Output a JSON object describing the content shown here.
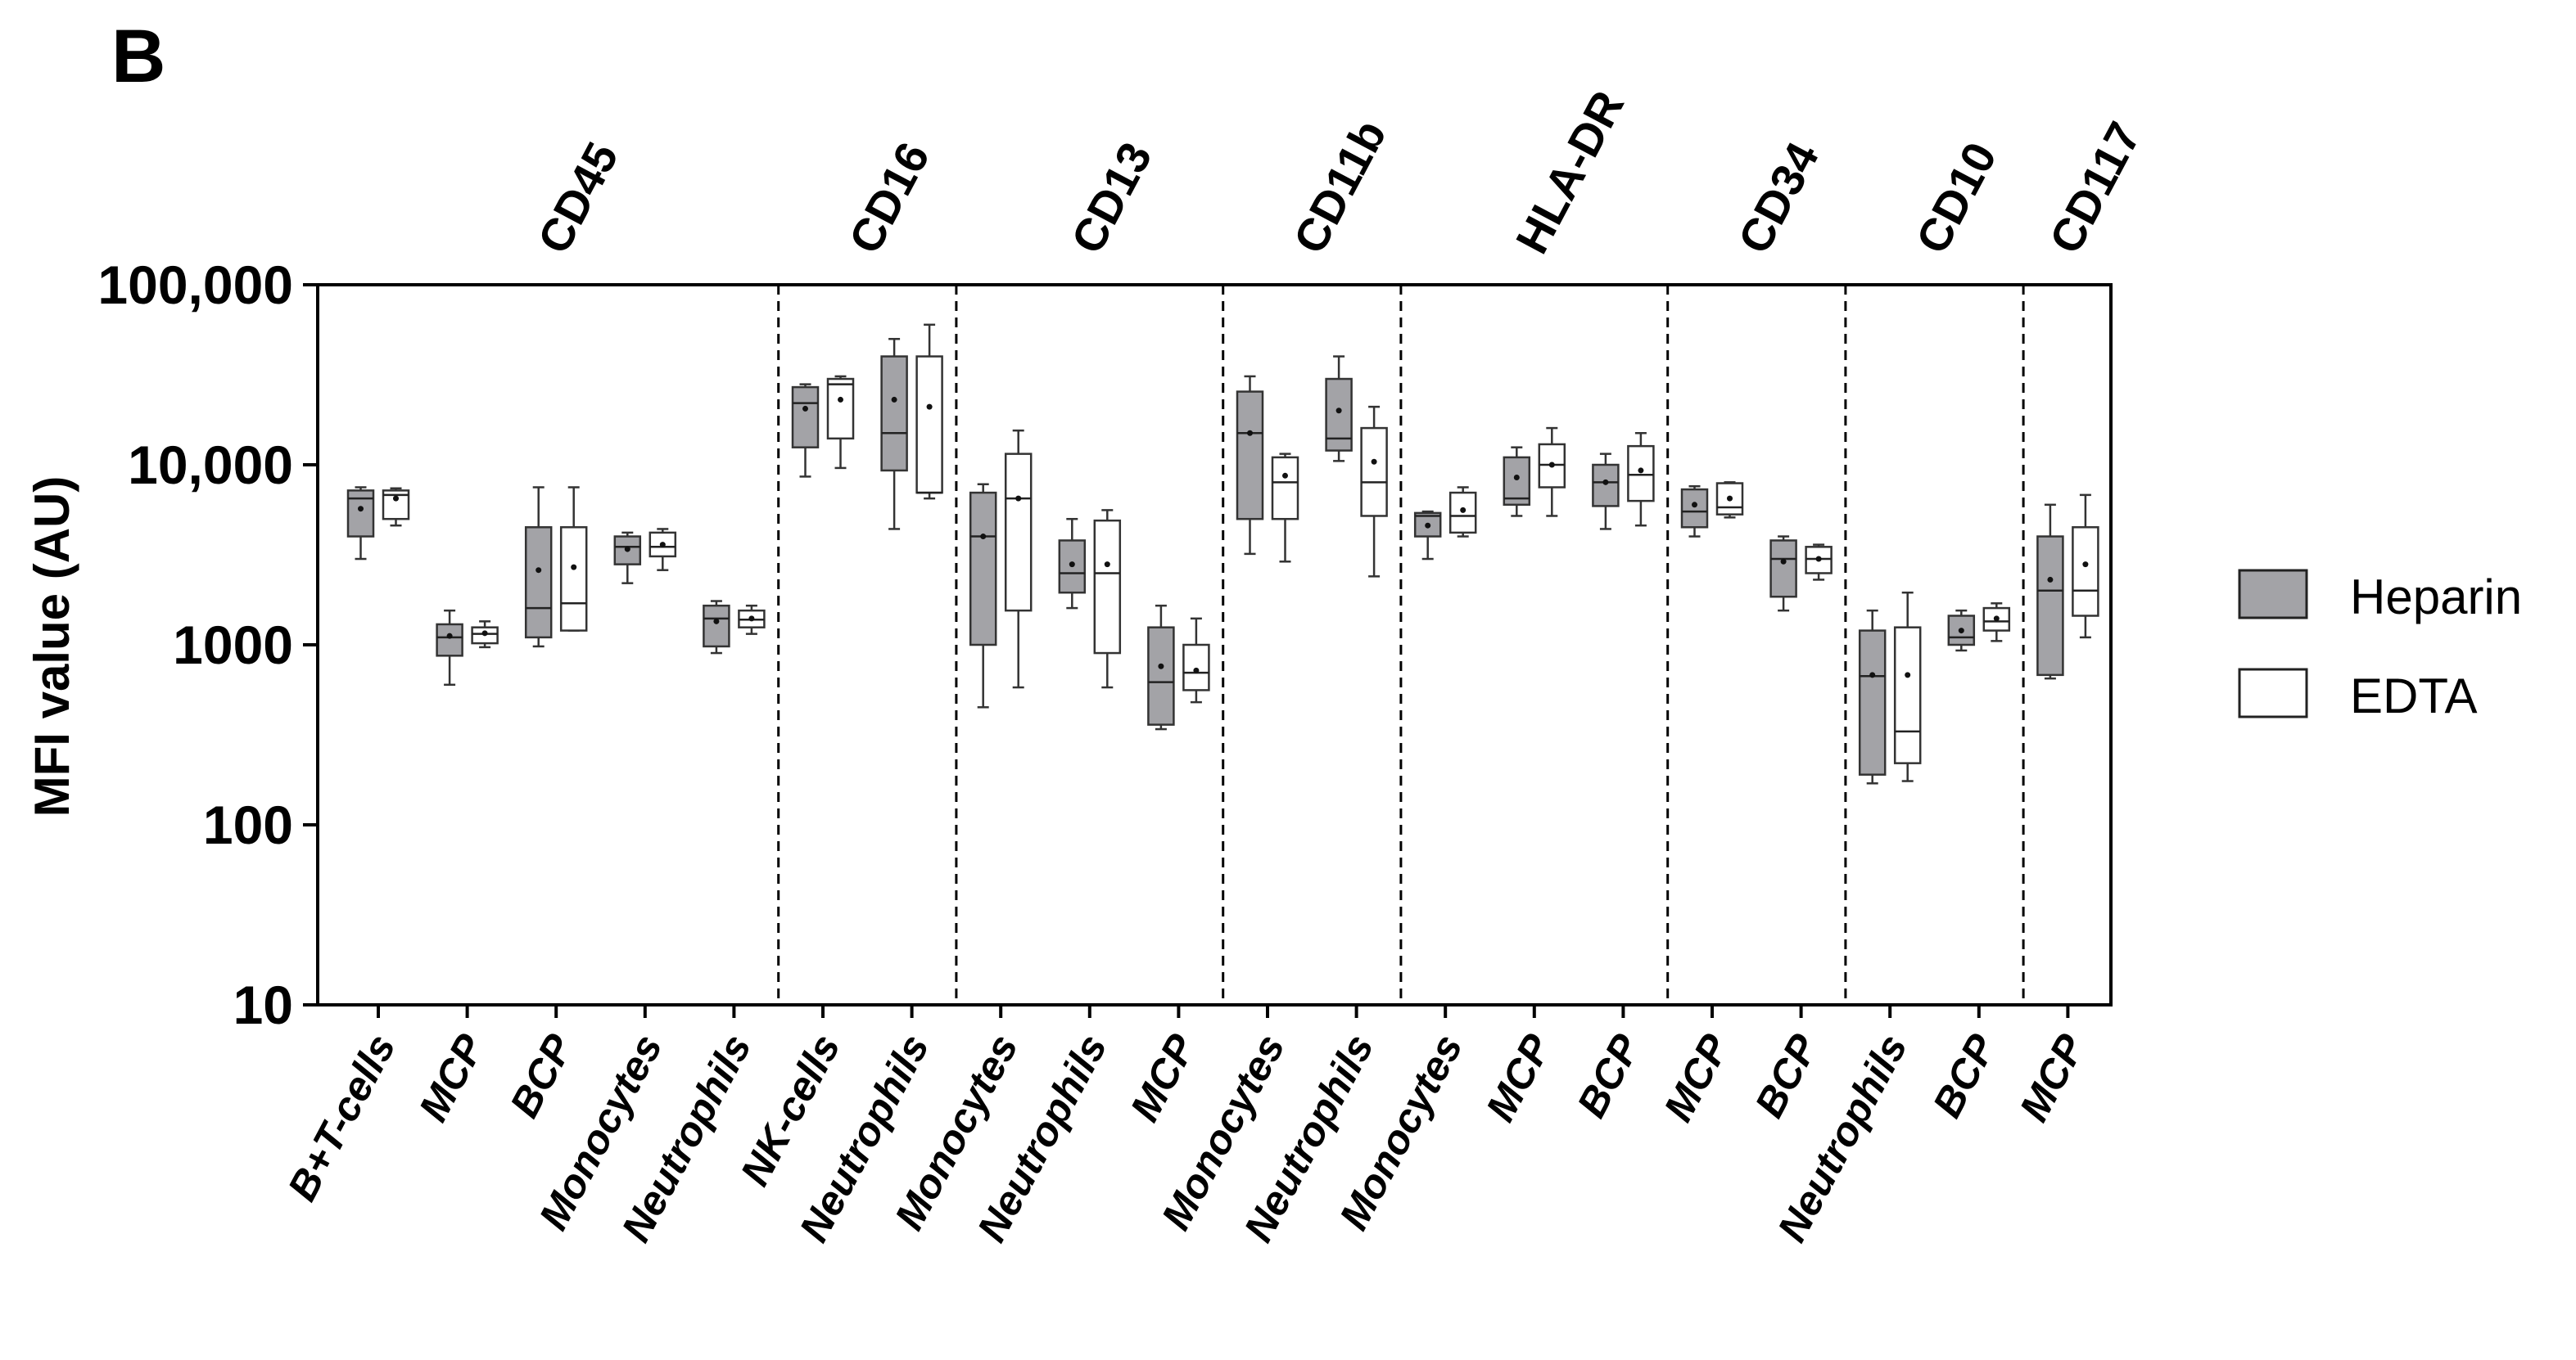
{
  "panel_label": "B",
  "chart_data": {
    "type": "boxplot",
    "title": "",
    "ylabel": "MFI value (AU)",
    "yscale": "log10",
    "ylim": [
      10,
      100000
    ],
    "y_ticks": [
      {
        "value": 10,
        "label": "10"
      },
      {
        "value": 100,
        "label": "100"
      },
      {
        "value": 1000,
        "label": "1000"
      },
      {
        "value": 10000,
        "label": "10,000"
      },
      {
        "value": 100000,
        "label": "100,000"
      }
    ],
    "legend": [
      {
        "name": "Heparin",
        "color": "#a3a3a7"
      },
      {
        "name": "EDTA",
        "color": "#ffffff"
      }
    ],
    "legend_position": "right",
    "groups": [
      {
        "marker": "CD45",
        "categories": [
          "B+T-cells",
          "MCP",
          "BCP",
          "Monocytes",
          "Neutrophils"
        ]
      },
      {
        "marker": "CD16",
        "categories": [
          "NK-cells",
          "Neutrophils"
        ]
      },
      {
        "marker": "CD13",
        "categories": [
          "Monocytes",
          "Neutrophils",
          "MCP"
        ]
      },
      {
        "marker": "CD11b",
        "categories": [
          "Monocytes",
          "Neutrophils"
        ]
      },
      {
        "marker": "HLA-DR",
        "categories": [
          "Monocytes",
          "MCP",
          "BCP"
        ]
      },
      {
        "marker": "CD34",
        "categories": [
          "MCP",
          "BCP"
        ]
      },
      {
        "marker": "CD10",
        "categories": [
          "Neutrophils",
          "BCP"
        ]
      },
      {
        "marker": "CD117",
        "categories": [
          "MCP"
        ]
      }
    ],
    "boxes": [
      {
        "heparin": {
          "min": 3000,
          "q1": 4000,
          "median": 6500,
          "q3": 7200,
          "max": 7500,
          "mean": 5700
        },
        "edta": {
          "min": 4600,
          "q1": 5000,
          "median": 6800,
          "q3": 7200,
          "max": 7400,
          "mean": 6500
        }
      },
      {
        "heparin": {
          "min": 600,
          "q1": 870,
          "median": 1100,
          "q3": 1300,
          "max": 1550,
          "mean": 1120
        },
        "edta": {
          "min": 970,
          "q1": 1020,
          "median": 1150,
          "q3": 1250,
          "max": 1350,
          "mean": 1160
        }
      },
      {
        "heparin": {
          "min": 980,
          "q1": 1100,
          "median": 1600,
          "q3": 4500,
          "max": 7500,
          "mean": 2600
        },
        "edta": {
          "min": 1200,
          "q1": 1200,
          "median": 1700,
          "q3": 4500,
          "max": 7500,
          "mean": 2700
        }
      },
      {
        "heparin": {
          "min": 2200,
          "q1": 2800,
          "median": 3500,
          "q3": 4000,
          "max": 4200,
          "mean": 3400
        },
        "edta": {
          "min": 2600,
          "q1": 3100,
          "median": 3500,
          "q3": 4200,
          "max": 4400,
          "mean": 3600
        }
      },
      {
        "heparin": {
          "min": 900,
          "q1": 980,
          "median": 1400,
          "q3": 1650,
          "max": 1750,
          "mean": 1350
        },
        "edta": {
          "min": 1150,
          "q1": 1250,
          "median": 1380,
          "q3": 1550,
          "max": 1650,
          "mean": 1400
        }
      },
      {
        "heparin": {
          "min": 8600,
          "q1": 12500,
          "median": 22000,
          "q3": 27000,
          "max": 28000,
          "mean": 20500
        },
        "edta": {
          "min": 9600,
          "q1": 14000,
          "median": 28000,
          "q3": 30000,
          "max": 31000,
          "mean": 23000
        }
      },
      {
        "heparin": {
          "min": 4400,
          "q1": 9300,
          "median": 15000,
          "q3": 40000,
          "max": 50000,
          "mean": 23000
        },
        "edta": {
          "min": 6500,
          "q1": 7000,
          "median": 7000,
          "q3": 40000,
          "max": 60000,
          "mean": 21000
        }
      },
      {
        "heparin": {
          "min": 450,
          "q1": 1000,
          "median": 4000,
          "q3": 7000,
          "max": 7800,
          "mean": 4000
        },
        "edta": {
          "min": 580,
          "q1": 1550,
          "median": 6500,
          "q3": 11500,
          "max": 15500,
          "mean": 6500
        }
      },
      {
        "heparin": {
          "min": 1600,
          "q1": 1950,
          "median": 2500,
          "q3": 3800,
          "max": 5000,
          "mean": 2800
        },
        "edta": {
          "min": 580,
          "q1": 900,
          "median": 2500,
          "q3": 4900,
          "max": 5600,
          "mean": 2800
        }
      },
      {
        "heparin": {
          "min": 340,
          "q1": 360,
          "median": 620,
          "q3": 1250,
          "max": 1650,
          "mean": 760
        },
        "edta": {
          "min": 480,
          "q1": 560,
          "median": 700,
          "q3": 1000,
          "max": 1400,
          "mean": 720
        }
      },
      {
        "heparin": {
          "min": 3200,
          "q1": 5000,
          "median": 15000,
          "q3": 25500,
          "max": 31000,
          "mean": 15000
        },
        "edta": {
          "min": 2900,
          "q1": 5000,
          "median": 8000,
          "q3": 11000,
          "max": 11500,
          "mean": 8700
        }
      },
      {
        "heparin": {
          "min": 10500,
          "q1": 12000,
          "median": 14000,
          "q3": 30000,
          "max": 40000,
          "mean": 20000
        },
        "edta": {
          "min": 2400,
          "q1": 5200,
          "median": 8000,
          "q3": 16000,
          "max": 21000,
          "mean": 10400
        }
      },
      {
        "heparin": {
          "min": 3000,
          "q1": 4000,
          "median": 5200,
          "q3": 5400,
          "max": 5500,
          "mean": 4600
        },
        "edta": {
          "min": 4000,
          "q1": 4200,
          "median": 5200,
          "q3": 7000,
          "max": 7500,
          "mean": 5600
        }
      },
      {
        "heparin": {
          "min": 5200,
          "q1": 6000,
          "median": 6500,
          "q3": 11000,
          "max": 12500,
          "mean": 8500
        },
        "edta": {
          "min": 5200,
          "q1": 7500,
          "median": 10000,
          "q3": 13000,
          "max": 16000,
          "mean": 10000
        }
      },
      {
        "heparin": {
          "min": 4400,
          "q1": 5900,
          "median": 8000,
          "q3": 10000,
          "max": 11500,
          "mean": 8000
        },
        "edta": {
          "min": 4600,
          "q1": 6300,
          "median": 8800,
          "q3": 12700,
          "max": 15000,
          "mean": 9300
        }
      },
      {
        "heparin": {
          "min": 4000,
          "q1": 4500,
          "median": 5500,
          "q3": 7300,
          "max": 7600,
          "mean": 6000
        },
        "edta": {
          "min": 5100,
          "q1": 5300,
          "median": 5800,
          "q3": 7900,
          "max": 8000,
          "mean": 6500
        }
      },
      {
        "heparin": {
          "min": 1550,
          "q1": 1850,
          "median": 3000,
          "q3": 3800,
          "max": 4000,
          "mean": 2900
        },
        "edta": {
          "min": 2300,
          "q1": 2500,
          "median": 3000,
          "q3": 3500,
          "max": 3600,
          "mean": 3000
        }
      },
      {
        "heparin": {
          "min": 170,
          "q1": 190,
          "median": 670,
          "q3": 1200,
          "max": 1550,
          "mean": 680
        },
        "edta": {
          "min": 175,
          "q1": 220,
          "median": 330,
          "q3": 1250,
          "max": 1950,
          "mean": 680
        }
      },
      {
        "heparin": {
          "min": 930,
          "q1": 1000,
          "median": 1100,
          "q3": 1450,
          "max": 1550,
          "mean": 1200
        },
        "edta": {
          "min": 1050,
          "q1": 1200,
          "median": 1350,
          "q3": 1600,
          "max": 1700,
          "mean": 1400
        }
      },
      {
        "heparin": {
          "min": 650,
          "q1": 680,
          "median": 2000,
          "q3": 4000,
          "max": 6000,
          "mean": 2300
        },
        "edta": {
          "min": 1100,
          "q1": 1450,
          "median": 2000,
          "q3": 4500,
          "max": 6800,
          "mean": 2800
        }
      }
    ]
  }
}
